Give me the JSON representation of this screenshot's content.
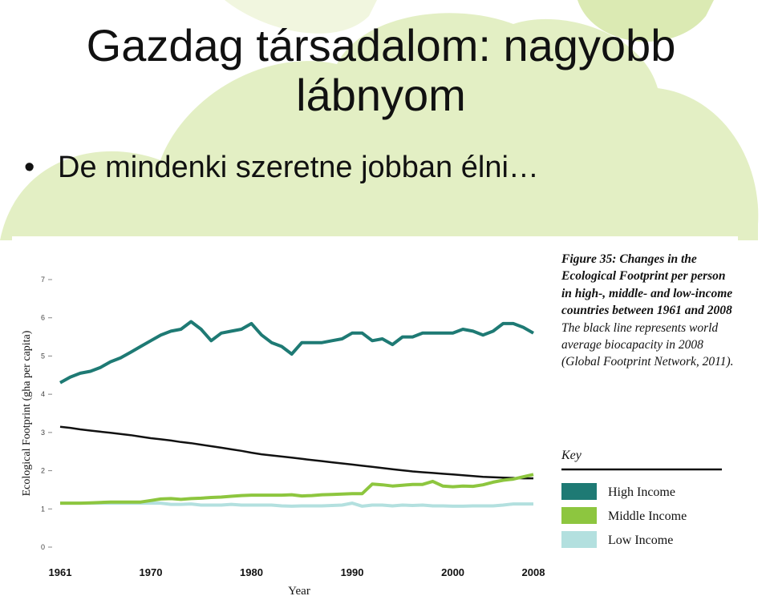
{
  "slide": {
    "title": "Gazdag társadalom: nagyobb lábnyom",
    "bullet": "De mindenki szeretne jobban élni…"
  },
  "chart_data": {
    "type": "line",
    "caption_bold": "Figure 35: Changes in the Ecological Footprint per person in high-, middle- and low-income countries between 1961 and 2008",
    "caption": "The black line represents world average biocapacity in 2008 (Global Footprint Network, 2011).",
    "key_title": "Key",
    "x_label": "Year",
    "y_label": "Ecological Footprint (gha per capita)",
    "x": [
      1961,
      1962,
      1963,
      1964,
      1965,
      1966,
      1967,
      1968,
      1969,
      1970,
      1971,
      1972,
      1973,
      1974,
      1975,
      1976,
      1977,
      1978,
      1979,
      1980,
      1981,
      1982,
      1983,
      1984,
      1985,
      1986,
      1987,
      1988,
      1989,
      1990,
      1991,
      1992,
      1993,
      1994,
      1995,
      1996,
      1997,
      1998,
      1999,
      2000,
      2001,
      2002,
      2003,
      2004,
      2005,
      2006,
      2007,
      2008
    ],
    "xlim": [
      1961,
      2008
    ],
    "xticks": [
      1961,
      1970,
      1980,
      1990,
      2000,
      2008
    ],
    "ylim": [
      0,
      7
    ],
    "yticks": [
      0,
      1,
      2,
      3,
      4,
      5,
      6,
      7
    ],
    "series": [
      {
        "name": "High Income",
        "color": "#1e7a74",
        "values": [
          4.3,
          4.45,
          4.55,
          4.6,
          4.7,
          4.85,
          4.95,
          5.1,
          5.25,
          5.4,
          5.55,
          5.65,
          5.7,
          5.9,
          5.7,
          5.4,
          5.6,
          5.65,
          5.7,
          5.85,
          5.55,
          5.35,
          5.25,
          5.05,
          5.35,
          5.35,
          5.35,
          5.4,
          5.45,
          5.6,
          5.6,
          5.4,
          5.45,
          5.3,
          5.5,
          5.5,
          5.6,
          5.6,
          5.6,
          5.6,
          5.7,
          5.65,
          5.55,
          5.65,
          5.85,
          5.85,
          5.75,
          5.6
        ]
      },
      {
        "name": "Middle Income",
        "color": "#8dc63f",
        "values": [
          1.15,
          1.15,
          1.15,
          1.16,
          1.17,
          1.18,
          1.18,
          1.18,
          1.18,
          1.22,
          1.26,
          1.27,
          1.25,
          1.27,
          1.28,
          1.3,
          1.31,
          1.33,
          1.35,
          1.36,
          1.36,
          1.36,
          1.36,
          1.37,
          1.34,
          1.35,
          1.37,
          1.38,
          1.39,
          1.4,
          1.4,
          1.65,
          1.63,
          1.6,
          1.62,
          1.64,
          1.64,
          1.72,
          1.6,
          1.58,
          1.6,
          1.59,
          1.63,
          1.7,
          1.75,
          1.78,
          1.84,
          1.9
        ]
      },
      {
        "name": "Low Income",
        "color": "#b3e0df",
        "values": [
          1.15,
          1.15,
          1.15,
          1.15,
          1.15,
          1.15,
          1.15,
          1.15,
          1.15,
          1.15,
          1.15,
          1.12,
          1.12,
          1.13,
          1.1,
          1.1,
          1.1,
          1.12,
          1.1,
          1.1,
          1.1,
          1.1,
          1.08,
          1.07,
          1.08,
          1.08,
          1.08,
          1.09,
          1.1,
          1.15,
          1.07,
          1.1,
          1.1,
          1.08,
          1.1,
          1.09,
          1.1,
          1.08,
          1.08,
          1.07,
          1.07,
          1.08,
          1.08,
          1.08,
          1.1,
          1.13,
          1.13,
          1.13
        ]
      }
    ],
    "biocapacity": {
      "color": "#111111",
      "values": [
        3.15,
        3.12,
        3.08,
        3.05,
        3.02,
        2.99,
        2.96,
        2.93,
        2.89,
        2.85,
        2.82,
        2.79,
        2.75,
        2.72,
        2.68,
        2.64,
        2.6,
        2.56,
        2.52,
        2.47,
        2.43,
        2.4,
        2.37,
        2.34,
        2.31,
        2.28,
        2.25,
        2.22,
        2.19,
        2.16,
        2.13,
        2.1,
        2.07,
        2.04,
        2.01,
        1.98,
        1.96,
        1.94,
        1.92,
        1.9,
        1.88,
        1.86,
        1.84,
        1.83,
        1.82,
        1.81,
        1.8,
        1.8
      ]
    }
  }
}
